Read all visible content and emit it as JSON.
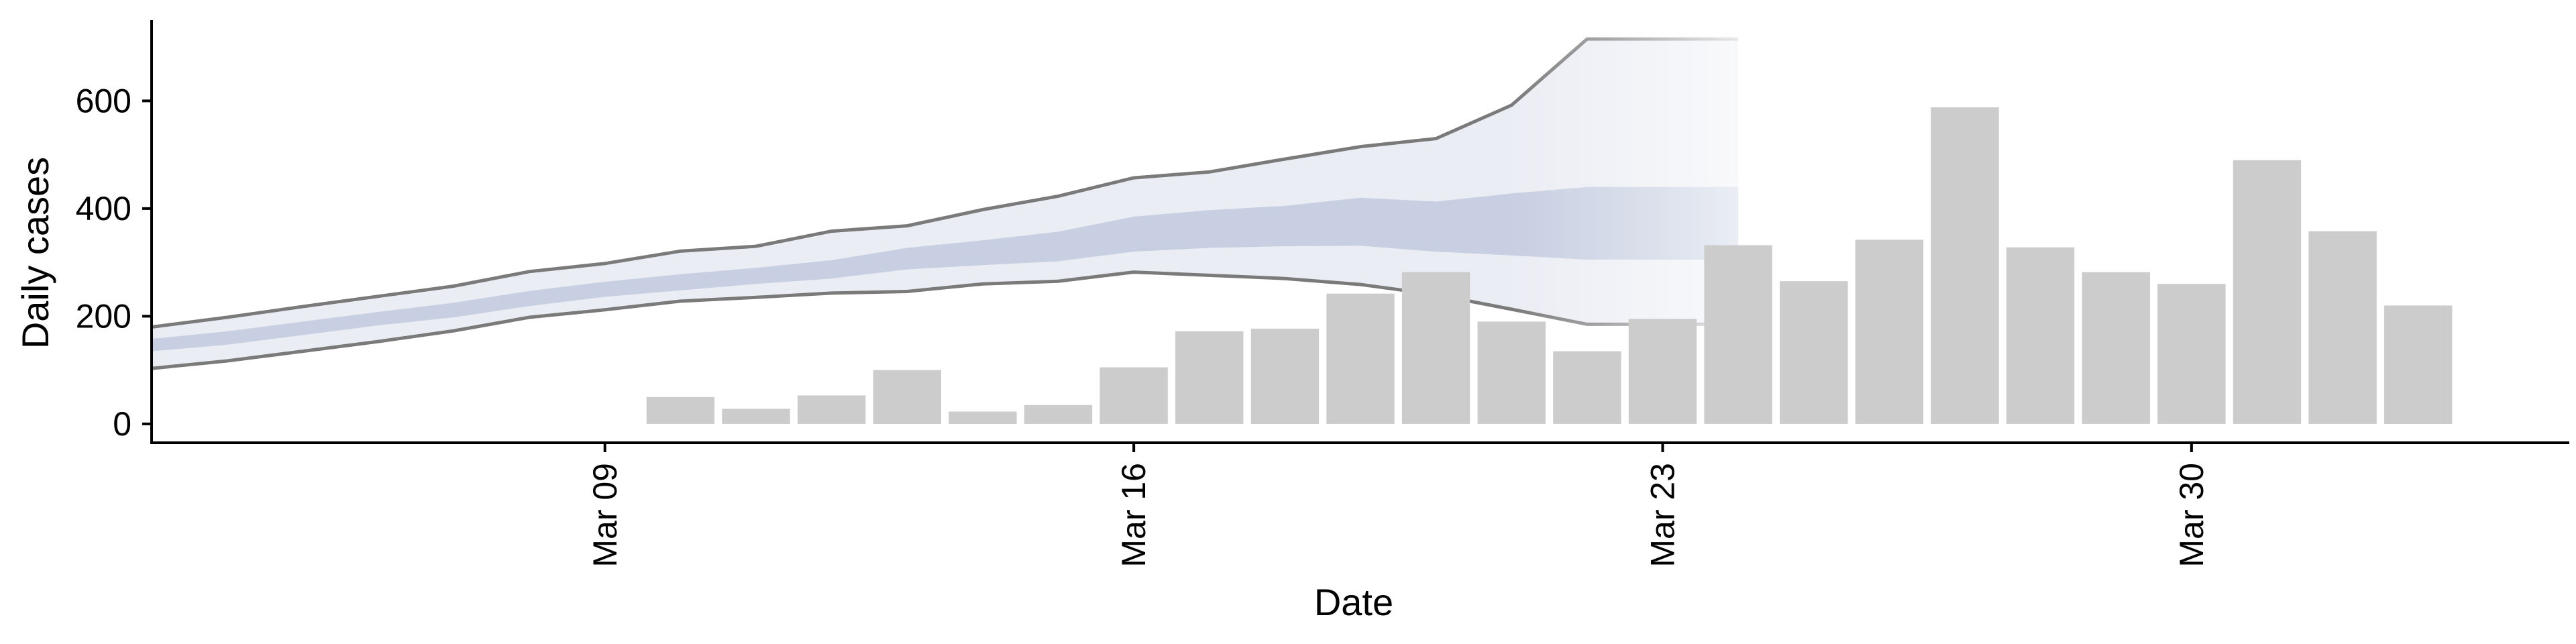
{
  "chart_data": {
    "type": "bar",
    "xlabel": "Date",
    "ylabel": "Daily cases",
    "x_axis": {
      "type": "date",
      "domain": [
        "2020-03-03",
        "2020-04-04"
      ],
      "ticks": [
        {
          "date": "2020-03-09",
          "label": "Mar 09"
        },
        {
          "date": "2020-03-16",
          "label": "Mar 16"
        },
        {
          "date": "2020-03-23",
          "label": "Mar 23"
        },
        {
          "date": "2020-03-30",
          "label": "Mar 30"
        }
      ]
    },
    "y_axis": {
      "ylim": [
        -35,
        750
      ],
      "ticks": [
        0,
        200,
        400,
        600
      ]
    },
    "grid": false,
    "legend": "none",
    "colors": {
      "bars": "#cccccc",
      "band_outer_fill": "#dde1ec",
      "band_inner_fill": "#aab6d2",
      "band_outer_line": "#7a7a7a",
      "axis": "#000000"
    },
    "bars": [
      {
        "date": "2020-03-10",
        "value": 50
      },
      {
        "date": "2020-03-11",
        "value": 28
      },
      {
        "date": "2020-03-12",
        "value": 53
      },
      {
        "date": "2020-03-13",
        "value": 100
      },
      {
        "date": "2020-03-14",
        "value": 23
      },
      {
        "date": "2020-03-15",
        "value": 35
      },
      {
        "date": "2020-03-16",
        "value": 105
      },
      {
        "date": "2020-03-17",
        "value": 172
      },
      {
        "date": "2020-03-18",
        "value": 177
      },
      {
        "date": "2020-03-19",
        "value": 242
      },
      {
        "date": "2020-03-20",
        "value": 282
      },
      {
        "date": "2020-03-21",
        "value": 190
      },
      {
        "date": "2020-03-22",
        "value": 135
      },
      {
        "date": "2020-03-23",
        "value": 195
      },
      {
        "date": "2020-03-24",
        "value": 332
      },
      {
        "date": "2020-03-25",
        "value": 265
      },
      {
        "date": "2020-03-26",
        "value": 342
      },
      {
        "date": "2020-03-27",
        "value": 588
      },
      {
        "date": "2020-03-28",
        "value": 328
      },
      {
        "date": "2020-03-29",
        "value": 282
      },
      {
        "date": "2020-03-30",
        "value": 260
      },
      {
        "date": "2020-03-31",
        "value": 490
      },
      {
        "date": "2020-04-01",
        "value": 358
      },
      {
        "date": "2020-04-02",
        "value": 220
      }
    ],
    "band": {
      "dates": [
        "2020-03-03",
        "2020-03-04",
        "2020-03-05",
        "2020-03-06",
        "2020-03-07",
        "2020-03-08",
        "2020-03-09",
        "2020-03-10",
        "2020-03-11",
        "2020-03-12",
        "2020-03-13",
        "2020-03-14",
        "2020-03-15",
        "2020-03-16",
        "2020-03-17",
        "2020-03-18",
        "2020-03-19",
        "2020-03-20",
        "2020-03-21",
        "2020-03-22",
        "2020-03-23",
        "2020-03-24"
      ],
      "outer_upper": [
        180,
        198,
        218,
        237,
        256,
        283,
        298,
        321,
        330,
        358,
        368,
        398,
        423,
        457,
        468,
        492,
        515,
        530,
        592,
        715,
        715,
        715
      ],
      "outer_lower": [
        103,
        117,
        135,
        153,
        173,
        198,
        212,
        228,
        235,
        243,
        246,
        260,
        265,
        282,
        276,
        270,
        259,
        240,
        213,
        185,
        185,
        185
      ],
      "inner_upper": [
        158,
        172,
        190,
        208,
        225,
        247,
        264,
        278,
        290,
        304,
        327,
        341,
        357,
        385,
        397,
        405,
        420,
        413,
        428,
        440,
        440,
        440
      ],
      "inner_lower": [
        135,
        147,
        165,
        183,
        198,
        219,
        236,
        248,
        260,
        270,
        287,
        295,
        302,
        320,
        327,
        330,
        331,
        320,
        313,
        305,
        305,
        305
      ],
      "faded_from": "2020-03-21"
    }
  }
}
